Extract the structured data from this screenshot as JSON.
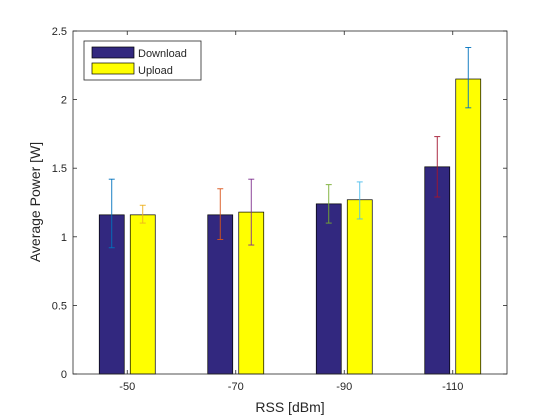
{
  "chart_data": {
    "type": "bar",
    "xlabel": "RSS [dBm]",
    "ylabel": "Average Power [W]",
    "ylim": [
      0,
      2.5
    ],
    "yticks": [
      0,
      0.5,
      1,
      1.5,
      2,
      2.5
    ],
    "ytick_labels": [
      "0",
      "0.5",
      "1",
      "1.5",
      "2",
      "2.5"
    ],
    "categories": [
      "-50",
      "-70",
      "-90",
      "-110"
    ],
    "legend_position": "top-left",
    "series": [
      {
        "name": "Download",
        "color": "#32287f",
        "values": [
          1.16,
          1.16,
          1.24,
          1.51
        ],
        "err_low": [
          0.92,
          0.98,
          1.1,
          1.29
        ],
        "err_high": [
          1.42,
          1.35,
          1.38,
          1.73
        ],
        "err_colors": [
          "#0072bd",
          "#d95319",
          "#77ac30",
          "#a2142f"
        ]
      },
      {
        "name": "Upload",
        "color": "#ffff00",
        "values": [
          1.16,
          1.18,
          1.27,
          2.15
        ],
        "err_low": [
          1.1,
          0.94,
          1.13,
          1.94
        ],
        "err_high": [
          1.23,
          1.42,
          1.4,
          2.38
        ],
        "err_colors": [
          "#edb120",
          "#7e2f8e",
          "#4dbeee",
          "#0072bd"
        ]
      }
    ]
  }
}
